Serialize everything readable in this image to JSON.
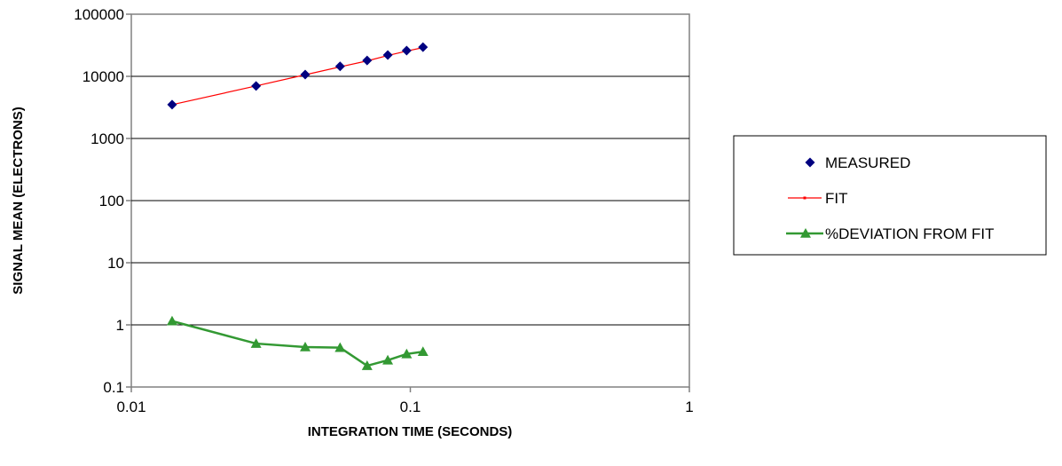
{
  "chart_data": {
    "type": "scatter",
    "xscale": "log",
    "yscale": "log",
    "xlim": [
      0.01,
      1
    ],
    "ylim": [
      0.1,
      100000
    ],
    "xlabel": "INTEGRATION TIME (SECONDS)",
    "ylabel": "SIGNAL MEAN (ELECTRONS)",
    "x_ticks": [
      "0.01",
      "0.1",
      "1"
    ],
    "y_ticks": [
      "0.1",
      "1",
      "10",
      "100",
      "1000",
      "10000",
      "100000"
    ],
    "grid": "horizontal",
    "legend_position": "right",
    "series": [
      {
        "name": "MEASURED",
        "marker": "diamond",
        "color": "#000080",
        "x": [
          0.014,
          0.028,
          0.042,
          0.056,
          0.07,
          0.083,
          0.097,
          0.111
        ],
        "y": [
          3500,
          7000,
          10700,
          14500,
          18000,
          22000,
          26000,
          29500
        ]
      },
      {
        "name": "FIT",
        "marker": "square-small",
        "color": "#ff0000",
        "x": [
          0.014,
          0.028,
          0.042,
          0.056,
          0.07,
          0.083,
          0.097,
          0.111
        ],
        "y": [
          3500,
          7000,
          10600,
          14200,
          17700,
          21600,
          25500,
          29000
        ]
      },
      {
        "name": "%DEVIATION FROM FIT",
        "marker": "triangle",
        "color": "#339933",
        "x": [
          0.014,
          0.028,
          0.042,
          0.056,
          0.07,
          0.083,
          0.097,
          0.111
        ],
        "y": [
          1.15,
          0.5,
          0.44,
          0.43,
          0.22,
          0.27,
          0.34,
          0.37
        ]
      }
    ]
  }
}
